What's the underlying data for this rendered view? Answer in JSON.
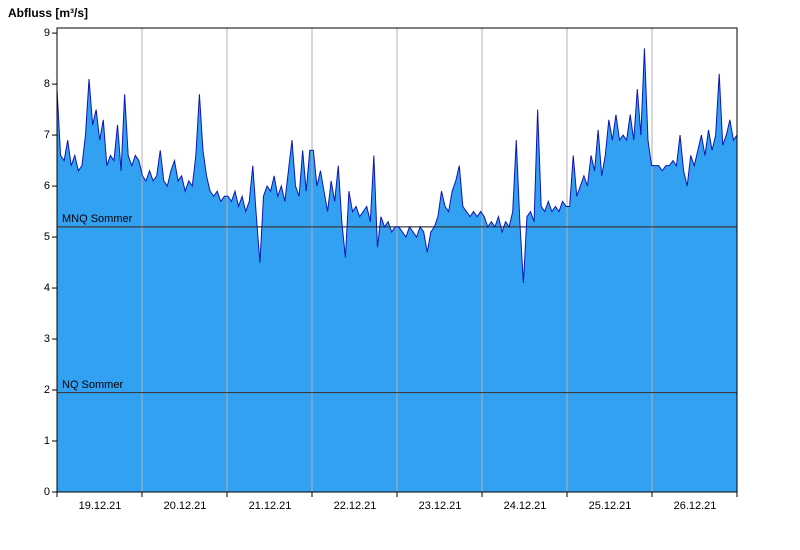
{
  "chart_data": {
    "type": "area",
    "title": "Abfluss [m³/s]",
    "ylabel": "Abfluss [m³/s]",
    "xlabel": "",
    "grid": "vertical-day-boundaries",
    "legend": "none",
    "ylim": [
      0,
      9.1
    ],
    "y_ticks": [
      0,
      1,
      2,
      3,
      4,
      5,
      6,
      7,
      8,
      9
    ],
    "x_tick_labels": [
      "19.12.21",
      "20.12.21",
      "21.12.21",
      "22.12.21",
      "23.12.21",
      "24.12.21",
      "25.12.21",
      "26.12.21"
    ],
    "ref_lines": [
      {
        "label": "MNQ Sommer",
        "value": 5.2
      },
      {
        "label": "NQ Sommer",
        "value": 1.95
      }
    ],
    "colors": {
      "fill": "#33a1f2",
      "line": "#0a16b4",
      "grid": "#b0b0b0",
      "ref": "#3c3c3c",
      "axis": "#000000"
    },
    "series": [
      {
        "name": "Abfluss",
        "unit": "m³/s",
        "values": [
          7.9,
          6.6,
          6.5,
          6.9,
          6.4,
          6.6,
          6.3,
          6.4,
          7.0,
          8.1,
          7.2,
          7.5,
          6.9,
          7.3,
          6.4,
          6.6,
          6.5,
          7.2,
          6.3,
          7.8,
          6.6,
          6.4,
          6.6,
          6.5,
          6.2,
          6.1,
          6.3,
          6.1,
          6.2,
          6.7,
          6.1,
          6.0,
          6.3,
          6.5,
          6.1,
          6.2,
          5.9,
          6.1,
          6.0,
          6.6,
          7.8,
          6.7,
          6.2,
          5.9,
          5.8,
          5.9,
          5.7,
          5.8,
          5.8,
          5.7,
          5.9,
          5.6,
          5.8,
          5.5,
          5.7,
          6.4,
          5.4,
          4.5,
          5.8,
          6.0,
          5.9,
          6.2,
          5.8,
          6.0,
          5.7,
          6.3,
          6.9,
          6.0,
          5.8,
          6.7,
          5.9,
          6.7,
          6.7,
          6.0,
          6.3,
          5.9,
          5.5,
          6.1,
          5.7,
          6.4,
          5.3,
          4.6,
          5.9,
          5.5,
          5.6,
          5.4,
          5.5,
          5.6,
          5.3,
          6.6,
          4.8,
          5.4,
          5.2,
          5.3,
          5.1,
          5.2,
          5.2,
          5.1,
          5.0,
          5.2,
          5.1,
          5.0,
          5.2,
          5.1,
          4.7,
          5.1,
          5.2,
          5.4,
          5.9,
          5.6,
          5.5,
          5.9,
          6.1,
          6.4,
          5.6,
          5.5,
          5.4,
          5.5,
          5.4,
          5.5,
          5.4,
          5.2,
          5.3,
          5.2,
          5.4,
          5.1,
          5.3,
          5.2,
          5.5,
          6.9,
          5.3,
          4.1,
          5.4,
          5.5,
          5.3,
          7.5,
          5.6,
          5.5,
          5.7,
          5.5,
          5.6,
          5.5,
          5.7,
          5.6,
          5.6,
          6.6,
          5.8,
          6.0,
          6.2,
          6.0,
          6.6,
          6.3,
          7.1,
          6.2,
          6.6,
          7.3,
          6.9,
          7.4,
          6.9,
          7.0,
          6.9,
          7.4,
          6.9,
          7.9,
          7.0,
          8.7,
          6.9,
          6.4,
          6.4,
          6.4,
          6.3,
          6.4,
          6.4,
          6.5,
          6.4,
          7.0,
          6.3,
          6.0,
          6.6,
          6.4,
          6.7,
          7.0,
          6.6,
          7.1,
          6.7,
          7.0,
          8.2,
          6.8,
          7.0,
          7.3,
          6.9,
          7.0
        ]
      }
    ]
  }
}
